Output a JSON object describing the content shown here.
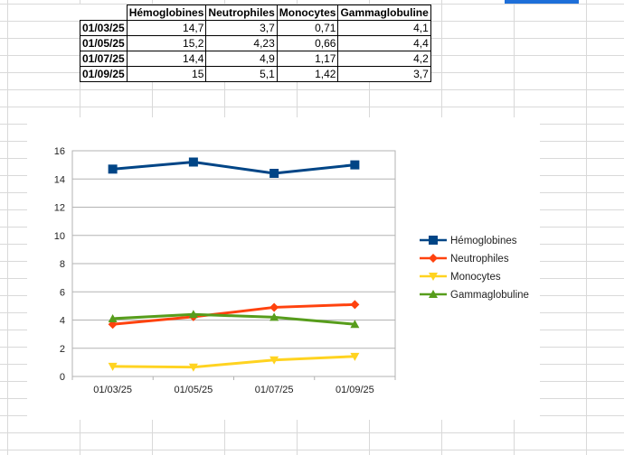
{
  "table": {
    "headers": [
      "Hémoglobines",
      "Neutrophiles",
      "Monocytes",
      "Gammaglobuline"
    ],
    "rows": [
      {
        "date": "01/03/25",
        "values": [
          "14,7",
          "3,7",
          "0,71",
          "4,1"
        ]
      },
      {
        "date": "01/05/25",
        "values": [
          "15,2",
          "4,23",
          "0,66",
          "4,4"
        ]
      },
      {
        "date": "01/07/25",
        "values": [
          "14,4",
          "4,9",
          "1,17",
          "4,2"
        ]
      },
      {
        "date": "01/09/25",
        "values": [
          "15",
          "5,1",
          "1,42",
          "3,7"
        ]
      }
    ]
  },
  "chart_data": {
    "type": "line",
    "title": "",
    "xlabel": "",
    "ylabel": "",
    "categories": [
      "01/03/25",
      "01/05/25",
      "01/07/25",
      "01/09/25"
    ],
    "ylim": [
      0,
      16
    ],
    "yticks": [
      0,
      2,
      4,
      6,
      8,
      10,
      12,
      14,
      16
    ],
    "grid": "horizontal",
    "legend_position": "right",
    "series": [
      {
        "name": "Hémoglobines",
        "values": [
          14.7,
          15.2,
          14.4,
          15
        ],
        "color": "#004586",
        "marker": "square"
      },
      {
        "name": "Neutrophiles",
        "values": [
          3.7,
          4.23,
          4.9,
          5.1
        ],
        "color": "#ff420e",
        "marker": "diamond"
      },
      {
        "name": "Monocytes",
        "values": [
          0.71,
          0.66,
          1.17,
          1.42
        ],
        "color": "#ffd320",
        "marker": "triangle-down"
      },
      {
        "name": "Gammaglobuline",
        "values": [
          4.1,
          4.4,
          4.2,
          3.7
        ],
        "color": "#579d1c",
        "marker": "triangle-up"
      }
    ]
  }
}
